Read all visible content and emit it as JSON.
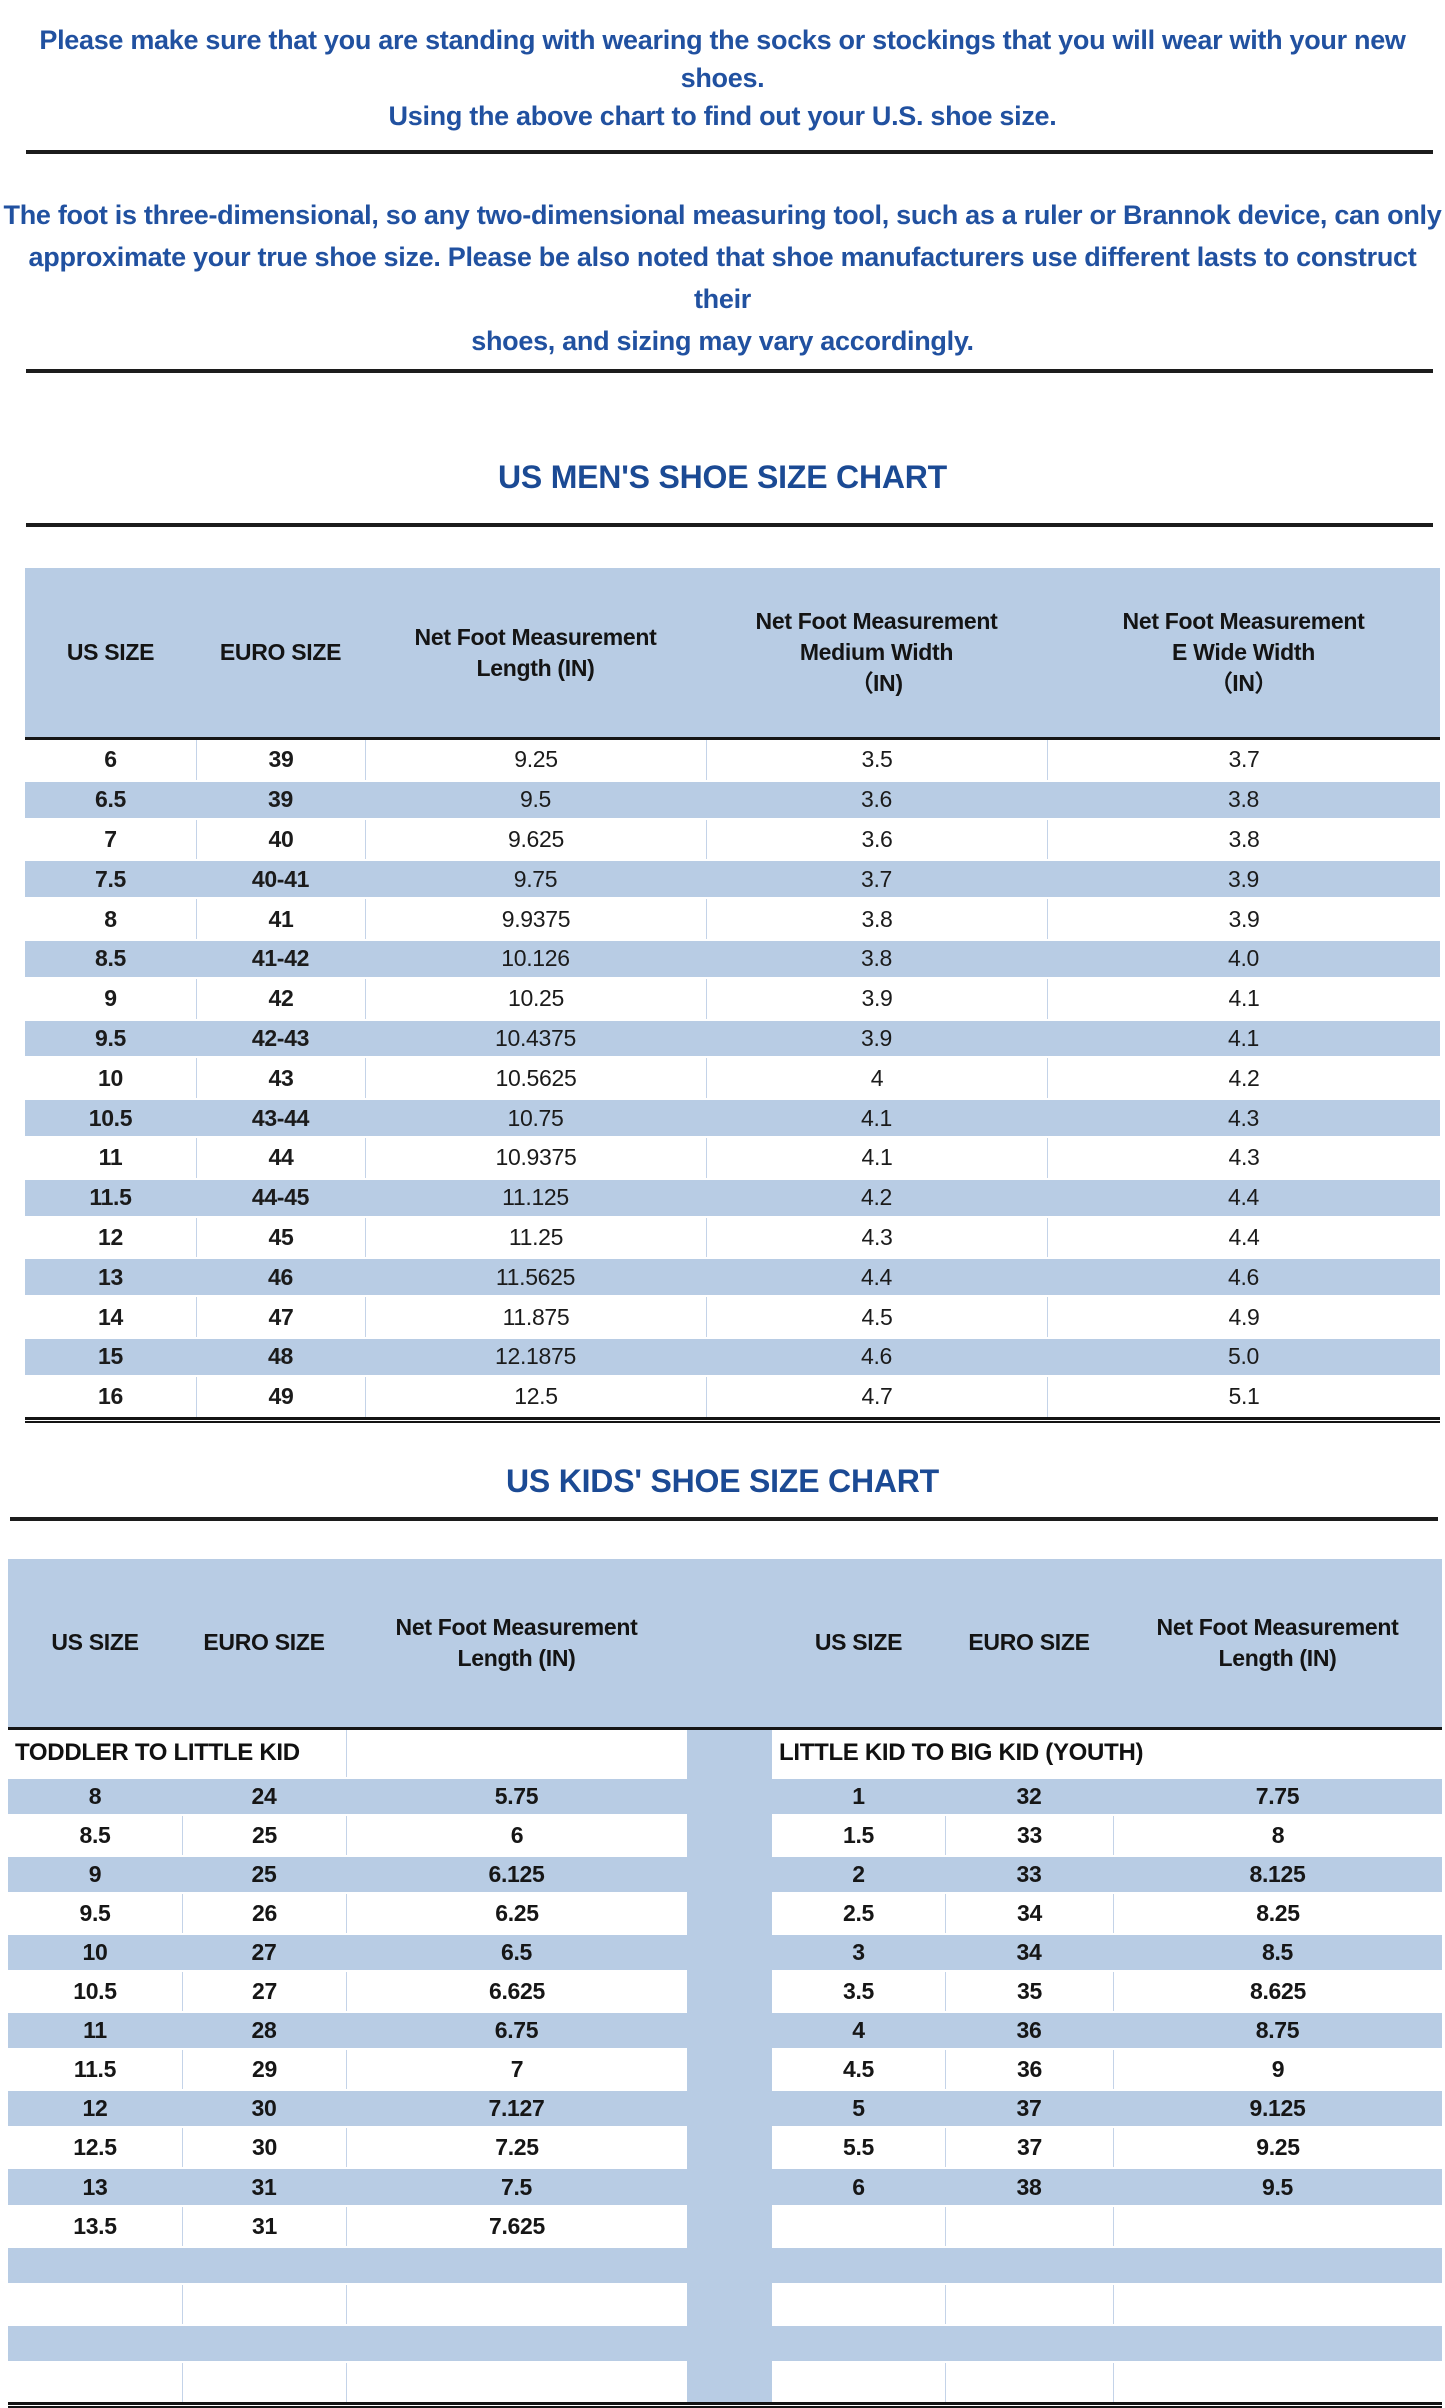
{
  "notes": {
    "intro_lines": [
      "Please make sure that you are standing with wearing the socks or stockings that you will wear with your new shoes.",
      "Using the above chart to find out your U.S. shoe size."
    ],
    "measure_lines": [
      "The foot is three-dimensional, so any two-dimensional measuring tool, such as a ruler or Brannok device, can only",
      "approximate your true shoe size. Please be also noted that shoe manufacturers use different lasts to construct their",
      "shoes, and sizing may vary accordingly."
    ]
  },
  "mens": {
    "title": "US MEN'S SHOE SIZE CHART",
    "headers": {
      "us": "US SIZE",
      "euro": "EURO SIZE",
      "length_lines": [
        "Net Foot Measurement",
        "Length (IN)"
      ],
      "medium_lines": [
        "Net Foot Measurement",
        "Medium Width",
        "（IN)"
      ],
      "ewide_lines": [
        "Net Foot Measurement",
        "E Wide Width",
        "（IN）"
      ]
    },
    "rows": [
      [
        "6",
        "39",
        "9.25",
        "3.5",
        "3.7"
      ],
      [
        "6.5",
        "39",
        "9.5",
        "3.6",
        "3.8"
      ],
      [
        "7",
        "40",
        "9.625",
        "3.6",
        "3.8"
      ],
      [
        "7.5",
        "40-41",
        "9.75",
        "3.7",
        "3.9"
      ],
      [
        "8",
        "41",
        "9.9375",
        "3.8",
        "3.9"
      ],
      [
        "8.5",
        "41-42",
        "10.126",
        "3.8",
        "4.0"
      ],
      [
        "9",
        "42",
        "10.25",
        "3.9",
        "4.1"
      ],
      [
        "9.5",
        "42-43",
        "10.4375",
        "3.9",
        "4.1"
      ],
      [
        "10",
        "43",
        "10.5625",
        "4",
        "4.2"
      ],
      [
        "10.5",
        "43-44",
        "10.75",
        "4.1",
        "4.3"
      ],
      [
        "11",
        "44",
        "10.9375",
        "4.1",
        "4.3"
      ],
      [
        "11.5",
        "44-45",
        "11.125",
        "4.2",
        "4.4"
      ],
      [
        "12",
        "45",
        "11.25",
        "4.3",
        "4.4"
      ],
      [
        "13",
        "46",
        "11.5625",
        "4.4",
        "4.6"
      ],
      [
        "14",
        "47",
        "11.875",
        "4.5",
        "4.9"
      ],
      [
        "15",
        "48",
        "12.1875",
        "4.6",
        "5.0"
      ],
      [
        "16",
        "49",
        "12.5",
        "4.7",
        "5.1"
      ]
    ]
  },
  "kids": {
    "title": "US KIDS' SHOE SIZE CHART",
    "headers": {
      "us": "US SIZE",
      "euro": "EURO SIZE",
      "length_lines": [
        "Net Foot Measurement",
        "Length (IN)"
      ]
    },
    "sections": {
      "left": "TODDLER TO LITTLE KID",
      "right": "LITTLE KID TO BIG KID (YOUTH)"
    },
    "left_rows": [
      [
        "8",
        "24",
        "5.75"
      ],
      [
        "8.5",
        "25",
        "6"
      ],
      [
        "9",
        "25",
        "6.125"
      ],
      [
        "9.5",
        "26",
        "6.25"
      ],
      [
        "10",
        "27",
        "6.5"
      ],
      [
        "10.5",
        "27",
        "6.625"
      ],
      [
        "11",
        "28",
        "6.75"
      ],
      [
        "11.5",
        "29",
        "7"
      ],
      [
        "12",
        "30",
        "7.127"
      ],
      [
        "12.5",
        "30",
        "7.25"
      ],
      [
        "13",
        "31",
        "7.5"
      ],
      [
        "13.5",
        "31",
        "7.625"
      ]
    ],
    "right_rows": [
      [
        "1",
        "32",
        "7.75"
      ],
      [
        "1.5",
        "33",
        "8"
      ],
      [
        "2",
        "33",
        "8.125"
      ],
      [
        "2.5",
        "34",
        "8.25"
      ],
      [
        "3",
        "34",
        "8.5"
      ],
      [
        "3.5",
        "35",
        "8.625"
      ],
      [
        "4",
        "36",
        "8.75"
      ],
      [
        "4.5",
        "36",
        "9"
      ],
      [
        "5",
        "37",
        "9.125"
      ],
      [
        "5.5",
        "37",
        "9.25"
      ],
      [
        "6",
        "38",
        "9.5"
      ]
    ],
    "body_row_count": 16
  },
  "colors": {
    "band_blue": "#b8cce4",
    "note_blue": "#2151a0",
    "title_blue": "#1b4a94",
    "line_black": "#1c1c1c",
    "cell_border": "#c4d3e8"
  }
}
